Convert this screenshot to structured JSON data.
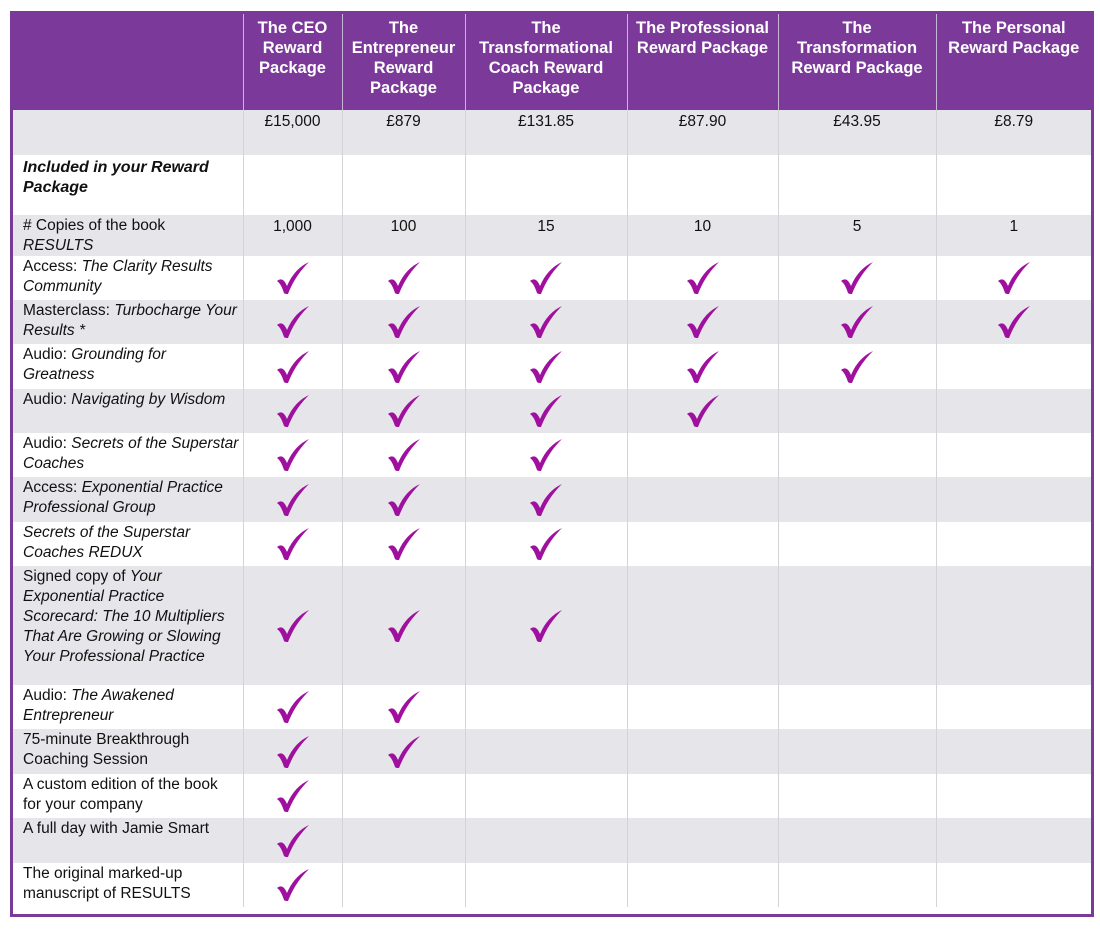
{
  "columns": [
    {
      "label": "The CEO Reward Package",
      "price": "£15,000",
      "copies": "1,000"
    },
    {
      "label": "The Entrepreneur Reward Package",
      "price": "£879",
      "copies": "100"
    },
    {
      "label": "The Transformational Coach Reward Package",
      "price": "£131.85",
      "copies": "15"
    },
    {
      "label": "The Professional Reward Package",
      "price": "£87.90",
      "copies": "10"
    },
    {
      "label": "The Transformation Reward Package",
      "price": "£43.95",
      "copies": "5"
    },
    {
      "label": "The Personal Reward Package",
      "price": "£8.79",
      "copies": "1"
    }
  ],
  "section_label": "Included in your Reward Package",
  "copies_row": {
    "prefix": "# Copies of the book",
    "title": "RESULTS"
  },
  "features": [
    {
      "prefix": "Access: ",
      "title": "The Clarity Results Community",
      "included": [
        true,
        true,
        true,
        true,
        true,
        true
      ]
    },
    {
      "prefix": "Masterclass: ",
      "title": "Turbocharge Your Results *",
      "included": [
        true,
        true,
        true,
        true,
        true,
        true
      ]
    },
    {
      "prefix": "Audio: ",
      "title": "Grounding for Greatness",
      "included": [
        true,
        true,
        true,
        true,
        true,
        false
      ]
    },
    {
      "prefix": "Audio: ",
      "title": "Navigating by Wisdom",
      "included": [
        true,
        true,
        true,
        true,
        false,
        false
      ]
    },
    {
      "prefix": "Audio: ",
      "title": "Secrets of the Superstar Coaches",
      "included": [
        true,
        true,
        true,
        false,
        false,
        false
      ]
    },
    {
      "prefix": "Access: ",
      "title": "Exponential Practice Professional Group",
      "included": [
        true,
        true,
        true,
        false,
        false,
        false
      ]
    },
    {
      "prefix": "",
      "title": "Secrets of the Superstar Coaches REDUX",
      "included": [
        true,
        true,
        true,
        false,
        false,
        false
      ]
    },
    {
      "prefix": "Signed copy of ",
      "title": "Your Exponential Practice Scorecard: The 10 Multipliers That Are Growing or Slowing Your Professional Practice",
      "included": [
        true,
        true,
        true,
        false,
        false,
        false
      ]
    },
    {
      "prefix": "Audio: ",
      "title": "The Awakened Entrepreneur",
      "included": [
        true,
        true,
        false,
        false,
        false,
        false
      ]
    },
    {
      "prefix": "75-minute Breakthrough Coaching Session",
      "title": "",
      "included": [
        true,
        true,
        false,
        false,
        false,
        false
      ]
    },
    {
      "prefix": "A custom edition of the book for your company",
      "title": "",
      "included": [
        true,
        false,
        false,
        false,
        false,
        false
      ]
    },
    {
      "prefix": "A full day with Jamie Smart",
      "title": "",
      "included": [
        true,
        false,
        false,
        false,
        false,
        false
      ]
    },
    {
      "prefix": "The original marked-up manuscript of RESULTS",
      "title": "",
      "included": [
        true,
        false,
        false,
        false,
        false,
        false
      ]
    }
  ],
  "colors": {
    "header": "#7b3a99",
    "check": "#a0109e",
    "shade": "#e5e5ea"
  },
  "check_icon": "checkmark-icon"
}
